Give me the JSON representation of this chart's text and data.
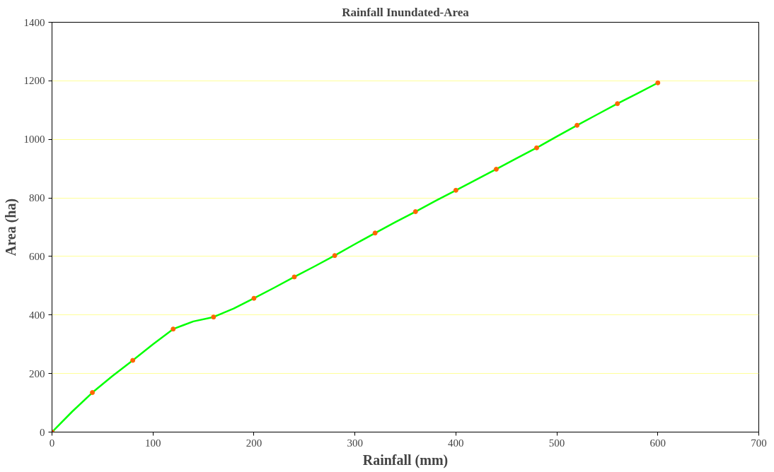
{
  "chart_data": {
    "type": "line",
    "title": "Rainfall Inundated-Area",
    "xlabel": "Rainfall (mm)",
    "ylabel": "Area (ha)",
    "series": [
      {
        "color": "#00ff00",
        "x": [
          0,
          20,
          40,
          60,
          80,
          100,
          120,
          130,
          140,
          160,
          180,
          200,
          220,
          240,
          260,
          280,
          300,
          320,
          340,
          360,
          380,
          400,
          420,
          440,
          460,
          480,
          500,
          520,
          540,
          560,
          580,
          600
        ],
        "values": [
          0,
          70,
          135,
          192,
          245,
          300,
          352,
          365,
          378,
          393,
          422,
          457,
          493,
          530,
          566,
          603,
          642,
          680,
          717,
          753,
          790,
          826,
          862,
          898,
          935,
          971,
          1010,
          1048,
          1085,
          1122,
          1157,
          1193
        ]
      },
      {
        "type": "scatter",
        "color": "#ff6600",
        "marker": "circle",
        "x": [
          0,
          40,
          80,
          120,
          160,
          200,
          240,
          280,
          320,
          360,
          400,
          440,
          480,
          520,
          560,
          600
        ],
        "values": [
          0,
          135,
          245,
          352,
          393,
          457,
          530,
          603,
          680,
          753,
          826,
          898,
          971,
          1048,
          1122,
          1193
        ]
      }
    ],
    "xlim": [
      0,
      700
    ],
    "xticks": [
      0,
      100,
      200,
      300,
      400,
      500,
      600,
      700
    ],
    "ylim": [
      0,
      1400
    ],
    "yticks": [
      0,
      200,
      400,
      600,
      800,
      1000,
      1200,
      1400
    ],
    "grid": "y"
  }
}
